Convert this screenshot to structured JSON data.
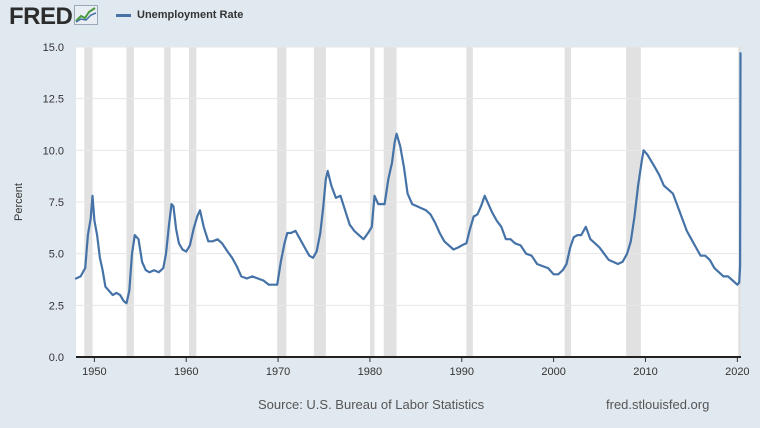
{
  "header": {
    "logo_text": "FRED",
    "legend_label": "Unemployment Rate"
  },
  "footer": {
    "source": "Source: U.S. Bureau of Labor Statistics",
    "url": "fred.stlouisfed.org"
  },
  "colors": {
    "background": "#e1e9f0",
    "plot": "#ffffff",
    "series": "#4572a7",
    "recession": "#e1e1e1"
  },
  "chart_data": {
    "type": "line",
    "title": "",
    "xlabel": "",
    "ylabel": "Percent",
    "xlim": [
      1948.0,
      2020.4
    ],
    "ylim": [
      0,
      15
    ],
    "y_ticks": [
      "0.0",
      "2.5",
      "5.0",
      "7.5",
      "10.0",
      "12.5",
      "15.0"
    ],
    "x_ticks": [
      "1950",
      "1960",
      "1970",
      "1980",
      "1990",
      "2000",
      "2010",
      "2020"
    ],
    "grid": true,
    "legend": "top-left",
    "recessions": [
      [
        1948.9,
        1949.8
      ],
      [
        1953.5,
        1954.3
      ],
      [
        1957.6,
        1958.3
      ],
      [
        1960.3,
        1961.1
      ],
      [
        1969.9,
        1970.9
      ],
      [
        1973.9,
        1975.2
      ],
      [
        1980.0,
        1980.5
      ],
      [
        1981.5,
        1982.9
      ],
      [
        1990.5,
        1991.2
      ],
      [
        2001.2,
        2001.9
      ],
      [
        2007.9,
        2009.5
      ],
      [
        2020.1,
        2020.4
      ]
    ],
    "series": [
      {
        "name": "Unemployment Rate",
        "x": [
          1948.0,
          1948.5,
          1949.0,
          1949.3,
          1949.6,
          1949.8,
          1950.0,
          1950.3,
          1950.6,
          1950.9,
          1951.2,
          1951.6,
          1952.0,
          1952.4,
          1952.8,
          1953.2,
          1953.5,
          1953.8,
          1954.1,
          1954.4,
          1954.8,
          1955.2,
          1955.6,
          1956.0,
          1956.5,
          1957.0,
          1957.5,
          1957.8,
          1958.1,
          1958.4,
          1958.6,
          1958.9,
          1959.2,
          1959.6,
          1960.0,
          1960.4,
          1960.8,
          1961.2,
          1961.5,
          1961.9,
          1962.4,
          1962.9,
          1963.4,
          1963.9,
          1964.5,
          1965.0,
          1965.5,
          1966.0,
          1966.6,
          1967.2,
          1967.8,
          1968.4,
          1969.0,
          1969.5,
          1969.9,
          1970.3,
          1970.7,
          1971.0,
          1971.4,
          1971.9,
          1972.4,
          1972.9,
          1973.4,
          1973.8,
          1974.2,
          1974.6,
          1974.9,
          1975.2,
          1975.4,
          1975.8,
          1976.3,
          1976.8,
          1977.3,
          1977.8,
          1978.3,
          1978.8,
          1979.3,
          1979.8,
          1980.2,
          1980.5,
          1980.9,
          1981.3,
          1981.6,
          1982.0,
          1982.4,
          1982.7,
          1982.9,
          1983.3,
          1983.7,
          1984.1,
          1984.6,
          1985.1,
          1985.6,
          1986.1,
          1986.6,
          1987.1,
          1987.6,
          1988.1,
          1988.6,
          1989.1,
          1989.6,
          1990.0,
          1990.5,
          1990.9,
          1991.3,
          1991.7,
          1992.1,
          1992.5,
          1992.9,
          1993.3,
          1993.8,
          1994.3,
          1994.8,
          1995.3,
          1995.8,
          1996.4,
          1997.0,
          1997.6,
          1998.2,
          1998.8,
          1999.4,
          2000.0,
          2000.5,
          2001.0,
          2001.4,
          2001.8,
          2002.2,
          2002.6,
          2003.0,
          2003.5,
          2004.0,
          2004.5,
          2005.0,
          2005.5,
          2006.0,
          2006.5,
          2007.0,
          2007.5,
          2008.0,
          2008.4,
          2008.8,
          2009.2,
          2009.6,
          2009.8,
          2010.2,
          2010.6,
          2011.0,
          2011.5,
          2012.0,
          2012.5,
          2013.0,
          2013.5,
          2014.0,
          2014.5,
          2015.0,
          2015.5,
          2016.0,
          2016.5,
          2017.0,
          2017.5,
          2018.0,
          2018.5,
          2019.0,
          2019.5,
          2020.0,
          2020.2,
          2020.3,
          2020.35
        ],
        "y": [
          3.8,
          3.9,
          4.3,
          5.9,
          6.7,
          7.8,
          6.6,
          5.9,
          4.8,
          4.2,
          3.4,
          3.2,
          3.0,
          3.1,
          3.0,
          2.7,
          2.6,
          3.2,
          5.0,
          5.9,
          5.7,
          4.6,
          4.2,
          4.1,
          4.2,
          4.1,
          4.3,
          5.0,
          6.3,
          7.4,
          7.3,
          6.2,
          5.5,
          5.2,
          5.1,
          5.4,
          6.2,
          6.8,
          7.1,
          6.3,
          5.6,
          5.6,
          5.7,
          5.5,
          5.1,
          4.8,
          4.4,
          3.9,
          3.8,
          3.9,
          3.8,
          3.7,
          3.5,
          3.5,
          3.5,
          4.6,
          5.5,
          6.0,
          6.0,
          6.1,
          5.7,
          5.3,
          4.9,
          4.8,
          5.1,
          6.0,
          7.2,
          8.6,
          9.0,
          8.3,
          7.7,
          7.8,
          7.1,
          6.4,
          6.1,
          5.9,
          5.7,
          6.0,
          6.3,
          7.8,
          7.4,
          7.4,
          7.4,
          8.6,
          9.4,
          10.4,
          10.8,
          10.2,
          9.2,
          7.9,
          7.4,
          7.3,
          7.2,
          7.1,
          6.9,
          6.5,
          6.0,
          5.6,
          5.4,
          5.2,
          5.3,
          5.4,
          5.5,
          6.2,
          6.8,
          6.9,
          7.3,
          7.8,
          7.4,
          7.0,
          6.6,
          6.3,
          5.7,
          5.7,
          5.5,
          5.4,
          5.0,
          4.9,
          4.5,
          4.4,
          4.3,
          4.0,
          4.0,
          4.2,
          4.5,
          5.3,
          5.8,
          5.9,
          5.9,
          6.3,
          5.7,
          5.5,
          5.3,
          5.0,
          4.7,
          4.6,
          4.5,
          4.6,
          5.0,
          5.6,
          6.8,
          8.3,
          9.5,
          10.0,
          9.8,
          9.5,
          9.2,
          8.8,
          8.3,
          8.1,
          7.9,
          7.3,
          6.7,
          6.1,
          5.7,
          5.3,
          4.9,
          4.9,
          4.7,
          4.3,
          4.1,
          3.9,
          3.9,
          3.7,
          3.5,
          3.6,
          4.4,
          14.7
        ]
      }
    ]
  }
}
